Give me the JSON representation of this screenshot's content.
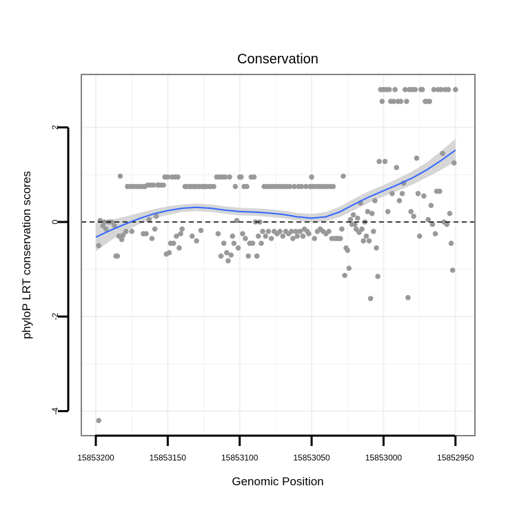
{
  "chart_data": {
    "type": "scatter",
    "title": "Conservation",
    "xlabel": "Genomic Position",
    "ylabel": "phyloP LRT conservation scores",
    "x_axis_reversed": true,
    "xlim": [
      15853218,
      15852936
    ],
    "ylim": [
      -4.5,
      3.15
    ],
    "x_ticks": [
      15853200,
      15853150,
      15853100,
      15853050,
      15853000,
      15852950
    ],
    "x_tick_labels": [
      "15853200",
      "15853150",
      "15853100",
      "15853050",
      "15853000",
      "15852950"
    ],
    "y_ticks": [
      -4,
      -2,
      0,
      2
    ],
    "y_tick_labels": [
      "-4",
      "-2",
      "0",
      "2"
    ],
    "reference_line": {
      "y": 0,
      "style": "dashed"
    },
    "grid": true,
    "colors": {
      "points": "#999999",
      "smooth_line": "#3366ff",
      "ribbon": "#cccccc",
      "panel_border": "#7f7f7f",
      "grid": "#f0f0f0"
    },
    "smooth": {
      "x": [
        15853200,
        15853190,
        15853180,
        15853170,
        15853160,
        15853150,
        15853140,
        15853130,
        15853120,
        15853110,
        15853100,
        15853090,
        15853080,
        15853070,
        15853060,
        15853050,
        15853040,
        15853030,
        15853020,
        15853010,
        15853000,
        15852990,
        15852980,
        15852970,
        15852960,
        15852950
      ],
      "y": [
        -0.32,
        -0.18,
        -0.05,
        0.07,
        0.17,
        0.24,
        0.29,
        0.31,
        0.29,
        0.25,
        0.22,
        0.21,
        0.19,
        0.16,
        0.11,
        0.08,
        0.11,
        0.22,
        0.38,
        0.53,
        0.66,
        0.79,
        0.93,
        1.1,
        1.3,
        1.52
      ],
      "se": [
        0.3,
        0.22,
        0.16,
        0.12,
        0.1,
        0.09,
        0.08,
        0.08,
        0.08,
        0.08,
        0.08,
        0.08,
        0.08,
        0.08,
        0.08,
        0.09,
        0.1,
        0.11,
        0.12,
        0.12,
        0.12,
        0.13,
        0.14,
        0.16,
        0.2,
        0.24
      ]
    },
    "points": [
      {
        "x": 15853198,
        "y": -4.2
      },
      {
        "x": 15853198,
        "y": -0.5
      },
      {
        "x": 15853197,
        "y": 0.03
      },
      {
        "x": 15853195,
        "y": -0.08
      },
      {
        "x": 15853194,
        "y": 0.0
      },
      {
        "x": 15853193,
        "y": -0.15
      },
      {
        "x": 15853191,
        "y": 0.0
      },
      {
        "x": 15853189,
        "y": 0.0
      },
      {
        "x": 15853187,
        "y": -0.08
      },
      {
        "x": 15853186,
        "y": -0.72
      },
      {
        "x": 15853185,
        "y": -0.72
      },
      {
        "x": 15853184,
        "y": -0.3
      },
      {
        "x": 15853183,
        "y": 0.97
      },
      {
        "x": 15853182,
        "y": -0.37
      },
      {
        "x": 15853181,
        "y": -0.28
      },
      {
        "x": 15853179,
        "y": -0.2
      },
      {
        "x": 15853178,
        "y": 0.75
      },
      {
        "x": 15853176,
        "y": 0.75
      },
      {
        "x": 15853175,
        "y": -0.2
      },
      {
        "x": 15853174,
        "y": 0.75
      },
      {
        "x": 15853172,
        "y": 0.75
      },
      {
        "x": 15853170,
        "y": 0.75
      },
      {
        "x": 15853168,
        "y": 0.75
      },
      {
        "x": 15853167,
        "y": -0.25
      },
      {
        "x": 15853166,
        "y": 0.75
      },
      {
        "x": 15853165,
        "y": -0.25
      },
      {
        "x": 15853164,
        "y": 0.78
      },
      {
        "x": 15853163,
        "y": 0.05
      },
      {
        "x": 15853162,
        "y": 0.78
      },
      {
        "x": 15853161,
        "y": -0.35
      },
      {
        "x": 15853160,
        "y": 0.78
      },
      {
        "x": 15853159,
        "y": -0.15
      },
      {
        "x": 15853158,
        "y": 0.12
      },
      {
        "x": 15853157,
        "y": 0.78
      },
      {
        "x": 15853156,
        "y": 0.78
      },
      {
        "x": 15853155,
        "y": 0.78
      },
      {
        "x": 15853153,
        "y": 0.78
      },
      {
        "x": 15853152,
        "y": 0.95
      },
      {
        "x": 15853151,
        "y": -0.68
      },
      {
        "x": 15853150,
        "y": 0.95
      },
      {
        "x": 15853149,
        "y": -0.65
      },
      {
        "x": 15853148,
        "y": -0.45
      },
      {
        "x": 15853147,
        "y": 0.95
      },
      {
        "x": 15853146,
        "y": -0.45
      },
      {
        "x": 15853145,
        "y": 0.95
      },
      {
        "x": 15853144,
        "y": -0.3
      },
      {
        "x": 15853143,
        "y": 0.95
      },
      {
        "x": 15853142,
        "y": -0.55
      },
      {
        "x": 15853141,
        "y": -0.25
      },
      {
        "x": 15853140,
        "y": -0.15
      },
      {
        "x": 15853138,
        "y": 0.75
      },
      {
        "x": 15853137,
        "y": 0.75
      },
      {
        "x": 15853135,
        "y": 0.75
      },
      {
        "x": 15853134,
        "y": 0.75
      },
      {
        "x": 15853133,
        "y": -0.3
      },
      {
        "x": 15853132,
        "y": 0.75
      },
      {
        "x": 15853131,
        "y": 0.75
      },
      {
        "x": 15853130,
        "y": -0.4
      },
      {
        "x": 15853129,
        "y": 0.75
      },
      {
        "x": 15853128,
        "y": 0.75
      },
      {
        "x": 15853127,
        "y": -0.18
      },
      {
        "x": 15853126,
        "y": 0.75
      },
      {
        "x": 15853125,
        "y": 0.75
      },
      {
        "x": 15853124,
        "y": 0.75
      },
      {
        "x": 15853123,
        "y": 0.75
      },
      {
        "x": 15853121,
        "y": 0.75
      },
      {
        "x": 15853120,
        "y": 0.75
      },
      {
        "x": 15853118,
        "y": 0.75
      },
      {
        "x": 15853116,
        "y": 0.95
      },
      {
        "x": 15853115,
        "y": -0.25
      },
      {
        "x": 15853114,
        "y": 0.95
      },
      {
        "x": 15853113,
        "y": -0.72
      },
      {
        "x": 15853112,
        "y": 0.95
      },
      {
        "x": 15853111,
        "y": -0.45
      },
      {
        "x": 15853110,
        "y": 0.95
      },
      {
        "x": 15853109,
        "y": -0.65
      },
      {
        "x": 15853108,
        "y": -0.82
      },
      {
        "x": 15853107,
        "y": 0.95
      },
      {
        "x": 15853106,
        "y": -0.7
      },
      {
        "x": 15853105,
        "y": -0.3
      },
      {
        "x": 15853104,
        "y": -0.45
      },
      {
        "x": 15853103,
        "y": 0.75
      },
      {
        "x": 15853102,
        "y": 0.03
      },
      {
        "x": 15853101,
        "y": -0.55
      },
      {
        "x": 15853100,
        "y": 0.95
      },
      {
        "x": 15853099,
        "y": 0.95
      },
      {
        "x": 15853098,
        "y": -0.25
      },
      {
        "x": 15853097,
        "y": 0.75
      },
      {
        "x": 15853096,
        "y": -0.35
      },
      {
        "x": 15853095,
        "y": 0.75
      },
      {
        "x": 15853094,
        "y": -0.72
      },
      {
        "x": 15853093,
        "y": -0.45
      },
      {
        "x": 15853092,
        "y": 0.95
      },
      {
        "x": 15853091,
        "y": -0.45
      },
      {
        "x": 15853090,
        "y": 0.95
      },
      {
        "x": 15853089,
        "y": 0.0
      },
      {
        "x": 15853088,
        "y": -0.72
      },
      {
        "x": 15853087,
        "y": -0.3
      },
      {
        "x": 15853086,
        "y": 0.0
      },
      {
        "x": 15853085,
        "y": -0.45
      },
      {
        "x": 15853084,
        "y": -0.2
      },
      {
        "x": 15853083,
        "y": 0.75
      },
      {
        "x": 15853082,
        "y": -0.3
      },
      {
        "x": 15853081,
        "y": 0.75
      },
      {
        "x": 15853080,
        "y": -0.2
      },
      {
        "x": 15853079,
        "y": 0.75
      },
      {
        "x": 15853078,
        "y": -0.35
      },
      {
        "x": 15853077,
        "y": 0.75
      },
      {
        "x": 15853076,
        "y": -0.2
      },
      {
        "x": 15853075,
        "y": 0.75
      },
      {
        "x": 15853074,
        "y": -0.25
      },
      {
        "x": 15853073,
        "y": 0.75
      },
      {
        "x": 15853072,
        "y": -0.2
      },
      {
        "x": 15853071,
        "y": 0.75
      },
      {
        "x": 15853070,
        "y": -0.3
      },
      {
        "x": 15853069,
        "y": 0.75
      },
      {
        "x": 15853068,
        "y": -0.2
      },
      {
        "x": 15853067,
        "y": 0.75
      },
      {
        "x": 15853066,
        "y": -0.25
      },
      {
        "x": 15853065,
        "y": 0.75
      },
      {
        "x": 15853064,
        "y": -0.2
      },
      {
        "x": 15853063,
        "y": -0.35
      },
      {
        "x": 15853062,
        "y": 0.75
      },
      {
        "x": 15853061,
        "y": -0.2
      },
      {
        "x": 15853060,
        "y": -0.3
      },
      {
        "x": 15853059,
        "y": 0.75
      },
      {
        "x": 15853058,
        "y": -0.2
      },
      {
        "x": 15853057,
        "y": 0.75
      },
      {
        "x": 15853056,
        "y": -0.3
      },
      {
        "x": 15853055,
        "y": -0.15
      },
      {
        "x": 15853054,
        "y": 0.75
      },
      {
        "x": 15853053,
        "y": -0.2
      },
      {
        "x": 15853052,
        "y": -0.25
      },
      {
        "x": 15853051,
        "y": 0.75
      },
      {
        "x": 15853050,
        "y": 0.95
      },
      {
        "x": 15853049,
        "y": 0.75
      },
      {
        "x": 15853048,
        "y": -0.35
      },
      {
        "x": 15853047,
        "y": 0.75
      },
      {
        "x": 15853046,
        "y": -0.2
      },
      {
        "x": 15853045,
        "y": 0.75
      },
      {
        "x": 15853044,
        "y": -0.15
      },
      {
        "x": 15853043,
        "y": 0.75
      },
      {
        "x": 15853042,
        "y": -0.2
      },
      {
        "x": 15853041,
        "y": 0.75
      },
      {
        "x": 15853040,
        "y": -0.25
      },
      {
        "x": 15853039,
        "y": 0.75
      },
      {
        "x": 15853038,
        "y": -0.2
      },
      {
        "x": 15853037,
        "y": 0.75
      },
      {
        "x": 15853036,
        "y": -0.35
      },
      {
        "x": 15853035,
        "y": 0.75
      },
      {
        "x": 15853034,
        "y": -0.35
      },
      {
        "x": 15853033,
        "y": -0.35
      },
      {
        "x": 15853032,
        "y": -0.35
      },
      {
        "x": 15853031,
        "y": -0.35
      },
      {
        "x": 15853030,
        "y": -0.35
      },
      {
        "x": 15853029,
        "y": -0.15
      },
      {
        "x": 15853028,
        "y": 0.97
      },
      {
        "x": 15853027,
        "y": -1.13
      },
      {
        "x": 15853026,
        "y": -0.55
      },
      {
        "x": 15853025,
        "y": -0.6
      },
      {
        "x": 15853024,
        "y": -0.98
      },
      {
        "x": 15853023,
        "y": 0.05
      },
      {
        "x": 15853022,
        "y": -0.05
      },
      {
        "x": 15853021,
        "y": 0.15
      },
      {
        "x": 15853020,
        "y": -0.05
      },
      {
        "x": 15853019,
        "y": -0.15
      },
      {
        "x": 15853018,
        "y": 0.08
      },
      {
        "x": 15853017,
        "y": -0.22
      },
      {
        "x": 15853016,
        "y": 0.4
      },
      {
        "x": 15853015,
        "y": -0.15
      },
      {
        "x": 15853014,
        "y": -0.4
      },
      {
        "x": 15853013,
        "y": 0.0
      },
      {
        "x": 15853012,
        "y": -0.3
      },
      {
        "x": 15853011,
        "y": 0.22
      },
      {
        "x": 15853010,
        "y": -0.4
      },
      {
        "x": 15853009,
        "y": -1.62
      },
      {
        "x": 15853008,
        "y": 0.18
      },
      {
        "x": 15853007,
        "y": -0.2
      },
      {
        "x": 15853006,
        "y": 0.45
      },
      {
        "x": 15853005,
        "y": -0.55
      },
      {
        "x": 15853004,
        "y": -1.15
      },
      {
        "x": 15853003,
        "y": 1.28
      },
      {
        "x": 15853002,
        "y": 2.8
      },
      {
        "x": 15853001,
        "y": 2.55
      },
      {
        "x": 15853000,
        "y": 2.8
      },
      {
        "x": 15852999,
        "y": 1.28
      },
      {
        "x": 15852998,
        "y": 2.8
      },
      {
        "x": 15852997,
        "y": 0.22
      },
      {
        "x": 15852996,
        "y": 2.8
      },
      {
        "x": 15852995,
        "y": 2.55
      },
      {
        "x": 15852994,
        "y": 0.6
      },
      {
        "x": 15852993,
        "y": 2.55
      },
      {
        "x": 15852992,
        "y": 2.8
      },
      {
        "x": 15852991,
        "y": 1.15
      },
      {
        "x": 15852990,
        "y": 2.55
      },
      {
        "x": 15852989,
        "y": 0.45
      },
      {
        "x": 15852988,
        "y": 2.55
      },
      {
        "x": 15852987,
        "y": 0.6
      },
      {
        "x": 15852986,
        "y": 0.82
      },
      {
        "x": 15852985,
        "y": 2.8
      },
      {
        "x": 15852984,
        "y": 2.55
      },
      {
        "x": 15852983,
        "y": -1.6
      },
      {
        "x": 15852982,
        "y": 2.8
      },
      {
        "x": 15852981,
        "y": 0.22
      },
      {
        "x": 15852980,
        "y": 2.8
      },
      {
        "x": 15852979,
        "y": 0.12
      },
      {
        "x": 15852978,
        "y": 2.8
      },
      {
        "x": 15852977,
        "y": 1.35
      },
      {
        "x": 15852976,
        "y": 0.6
      },
      {
        "x": 15852975,
        "y": -0.3
      },
      {
        "x": 15852974,
        "y": 2.8
      },
      {
        "x": 15852973,
        "y": 2.8
      },
      {
        "x": 15852972,
        "y": 0.55
      },
      {
        "x": 15852971,
        "y": 2.55
      },
      {
        "x": 15852970,
        "y": 2.55
      },
      {
        "x": 15852969,
        "y": 0.05
      },
      {
        "x": 15852968,
        "y": 2.55
      },
      {
        "x": 15852967,
        "y": 0.35
      },
      {
        "x": 15852966,
        "y": -0.05
      },
      {
        "x": 15852965,
        "y": 2.8
      },
      {
        "x": 15852964,
        "y": -0.25
      },
      {
        "x": 15852963,
        "y": 0.65
      },
      {
        "x": 15852962,
        "y": 2.8
      },
      {
        "x": 15852961,
        "y": 0.65
      },
      {
        "x": 15852960,
        "y": 2.8
      },
      {
        "x": 15852959,
        "y": 1.45
      },
      {
        "x": 15852958,
        "y": 0.0
      },
      {
        "x": 15852957,
        "y": 2.8
      },
      {
        "x": 15852956,
        "y": -0.05
      },
      {
        "x": 15852955,
        "y": 2.8
      },
      {
        "x": 15852954,
        "y": 0.18
      },
      {
        "x": 15852953,
        "y": -0.45
      },
      {
        "x": 15852952,
        "y": -1.02
      },
      {
        "x": 15852951,
        "y": 1.25
      },
      {
        "x": 15852950,
        "y": 2.8
      }
    ]
  }
}
